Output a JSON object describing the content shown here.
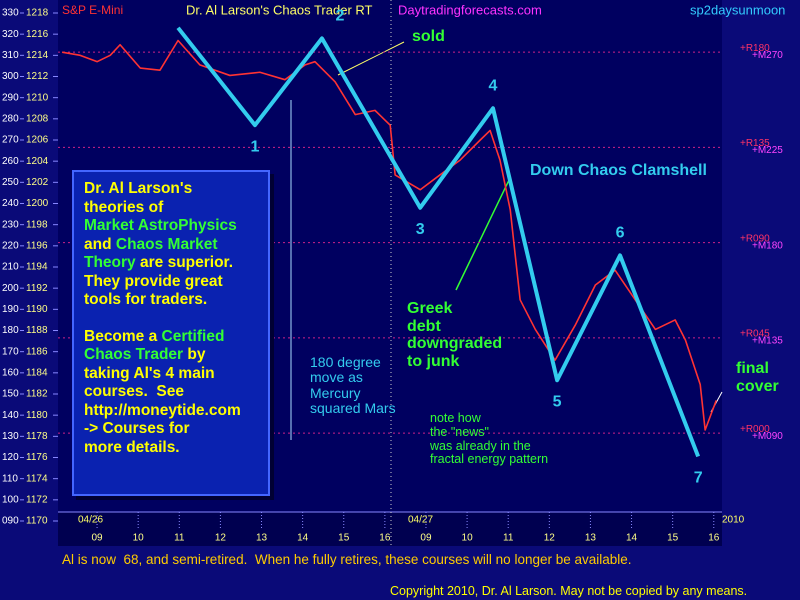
{
  "chart_data": {
    "type": "line",
    "title": "Dr. Al Larson's Chaos Trader RT",
    "instrument": "S&P E-Mini",
    "website": "Daytradingforecasts.com",
    "study": "sp2daysunmoon",
    "dates": [
      "04/26",
      "04/27",
      "2010"
    ],
    "xlim": [
      8.05,
      24.2
    ],
    "xticks": [
      {
        "value": 9,
        "label": "09"
      },
      10,
      11,
      12,
      13,
      14,
      15,
      16,
      {
        "value": 17,
        "label": "09"
      },
      {
        "value": 18,
        "label": "10"
      },
      {
        "value": 19,
        "label": "11"
      },
      {
        "value": 20,
        "label": "12"
      },
      {
        "value": 21,
        "label": "13"
      },
      {
        "value": 22,
        "label": "14"
      },
      {
        "value": 23,
        "label": "15"
      },
      {
        "value": 24,
        "label": "16"
      }
    ],
    "ylim": [
      1170,
      1218
    ],
    "yticks": [
      1218,
      1216,
      1214,
      1212,
      1210,
      1208,
      1206,
      1204,
      1202,
      1200,
      1198,
      1196,
      1194,
      1192,
      1190,
      1188,
      1186,
      1184,
      1182,
      1180,
      1178,
      1176,
      1174,
      1172,
      1170
    ],
    "y2lim": [
      90,
      330
    ],
    "y2ticks": [
      330,
      320,
      310,
      300,
      290,
      280,
      270,
      260,
      250,
      240,
      230,
      220,
      210,
      200,
      190,
      180,
      170,
      160,
      150,
      140,
      130,
      120,
      110,
      100,
      {
        "value": 90,
        "label": "090"
      }
    ],
    "levels": [
      {
        "r": "+R180",
        "m": "+M270",
        "value": 1214.3
      },
      {
        "r": "+R135",
        "m": "+M225",
        "value": 1205.3
      },
      {
        "r": "+R090",
        "m": "+M180",
        "value": 1196.3
      },
      {
        "r": "+R045",
        "m": "+M135",
        "value": 1187.3
      },
      {
        "r": "+R000",
        "m": "+M090",
        "value": 1178.3
      }
    ],
    "series": [
      {
        "color": "#33ccee",
        "x": [
          10.97,
          12.84,
          14.47,
          16.86,
          18.63,
          20.19,
          21.72,
          23.62
        ],
        "values": [
          1216.6,
          1207.4,
          1215.6,
          1199.6,
          1209.0,
          1183.3,
          1195.1,
          1176.1
        ],
        "point_labels": [
          null,
          "1",
          "2",
          "3",
          "4",
          "5",
          "6",
          "7"
        ]
      },
      {
        "color": "#ff3333",
        "x": [
          8.15,
          8.59,
          9.0,
          9.32,
          9.56,
          10.05,
          10.53,
          10.97,
          11.5,
          12.23,
          12.96,
          13.57,
          14.06,
          14.3,
          14.79,
          15.28,
          15.76,
          16.13,
          16.25,
          16.86,
          17.34,
          17.83,
          18.32,
          18.56,
          18.8,
          19.05,
          19.29,
          19.66,
          20.14,
          20.63,
          21.12,
          21.6,
          22.09,
          22.58,
          23.06,
          23.31,
          23.67,
          23.79,
          24.06
        ],
        "values": [
          1214.3,
          1214.0,
          1213.4,
          1214.0,
          1215.0,
          1212.8,
          1212.6,
          1215.4,
          1213.1,
          1212.1,
          1212.4,
          1211.7,
          1213.1,
          1213.4,
          1211.5,
          1208.4,
          1208.8,
          1207.4,
          1202.7,
          1201.3,
          1202.7,
          1204.1,
          1206.0,
          1206.9,
          1204.1,
          1199.4,
          1190.9,
          1188.1,
          1185.2,
          1188.5,
          1192.3,
          1193.7,
          1190.9,
          1188.1,
          1189.0,
          1187.1,
          1182.9,
          1178.6,
          1181.4
        ]
      }
    ],
    "annotations": [
      "sold",
      "Down Chaos Clamshell",
      "Greek\ndebt\ndowngraded\nto junk",
      "180 degree\nmove as\nMercury\nsquared Mars",
      "note how\nthe \"news\"\nwas already in the\nfractal energy pattern",
      "final\ncover"
    ],
    "info_box": [
      [
        [
          {
            "text": "Dr. Al Larson's",
            "color": "#ffff00"
          }
        ],
        [
          {
            "text": "theories of",
            "color": "#ffff00"
          }
        ],
        [
          {
            "text": "Market AstroPhysics",
            "color": "#33ff33"
          }
        ],
        [
          {
            "text": "and ",
            "color": "#ffff00"
          },
          {
            "text": "Chaos Market",
            "color": "#33ff33"
          }
        ],
        [
          {
            "text": "Theory",
            "color": "#33ff33"
          },
          {
            "text": " are superior.",
            "color": "#ffff00"
          }
        ],
        [
          {
            "text": "They provide great",
            "color": "#ffff00"
          }
        ],
        [
          {
            "text": "tools for traders.",
            "color": "#ffff00"
          }
        ]
      ],
      [
        [
          {
            "text": "Become a ",
            "color": "#ffff00"
          },
          {
            "text": "Certified",
            "color": "#33ff33"
          }
        ],
        [
          {
            "text": "Chaos Trader",
            "color": "#33ff33"
          },
          {
            "text": " by",
            "color": "#ffff00"
          }
        ],
        [
          {
            "text": "taking Al's 4 main",
            "color": "#ffff00"
          }
        ],
        [
          {
            "text": "courses.  See",
            "color": "#ffff00"
          }
        ],
        [
          {
            "text": "http://moneytide.com",
            "color": "#ffff00"
          }
        ],
        [
          {
            "text": "-> Courses for",
            "color": "#ffff00"
          }
        ],
        [
          {
            "text": "more details.",
            "color": "#ffff00"
          }
        ]
      ]
    ],
    "footer": "Al is now  68, and semi-retired.  When he fully retires, these courses will no longer be available.",
    "copyright": "Copyright 2010, Dr. Al Larson. May not be copied by any means."
  }
}
